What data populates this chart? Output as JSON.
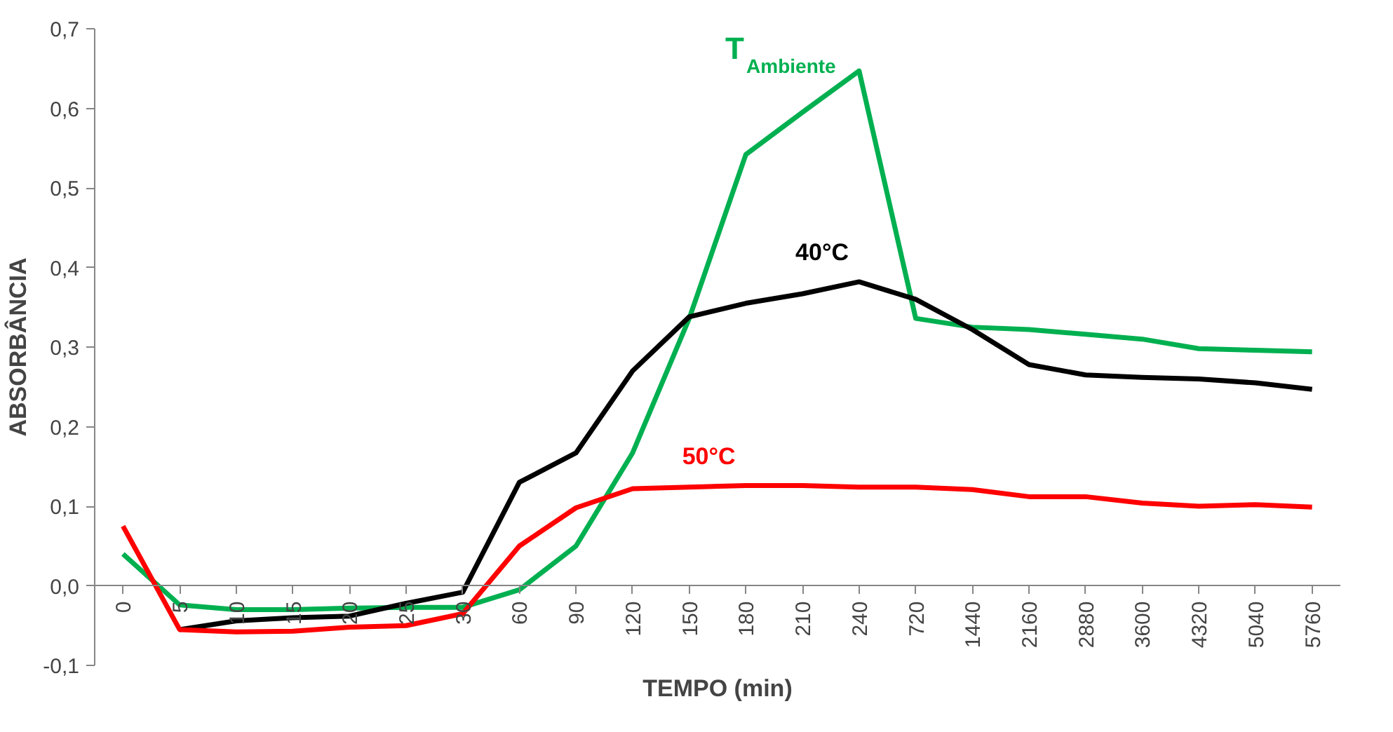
{
  "chart_data": {
    "type": "line",
    "xlabel": "TEMPO (min)",
    "ylabel": "ABSORBÂNCIA",
    "categories": [
      "0",
      "5",
      "10",
      "15",
      "20",
      "25",
      "30",
      "60",
      "90",
      "120",
      "150",
      "180",
      "210",
      "240",
      "720",
      "1440",
      "2160",
      "2880",
      "3600",
      "4320",
      "5040",
      "5760"
    ],
    "series": [
      {
        "name": "T$_{Ambiente}$",
        "color": "#00b050",
        "values": [
          0.04,
          -0.024,
          -0.03,
          -0.03,
          -0.028,
          -0.027,
          -0.027,
          -0.005,
          0.05,
          0.167,
          0.336,
          0.542,
          0.595,
          0.647,
          0.336,
          0.325,
          0.322,
          0.316,
          0.31,
          0.298,
          0.296,
          0.294
        ]
      },
      {
        "name": "40°C",
        "color": "#000000",
        "values": [
          null,
          -0.055,
          -0.044,
          -0.04,
          -0.038,
          -0.022,
          -0.008,
          0.13,
          0.167,
          0.27,
          0.338,
          0.355,
          0.367,
          0.382,
          0.36,
          0.322,
          0.278,
          0.265,
          0.262,
          0.26,
          0.255,
          0.247
        ]
      },
      {
        "name": "50°C",
        "color": "#ff0000",
        "values": [
          0.075,
          -0.055,
          -0.058,
          -0.057,
          -0.052,
          -0.05,
          -0.035,
          0.05,
          0.098,
          0.122,
          0.124,
          0.126,
          0.126,
          0.124,
          0.124,
          0.121,
          0.112,
          0.112,
          0.104,
          0.1,
          0.102,
          0.099
        ]
      }
    ],
    "ylim": [
      -0.1,
      0.7
    ],
    "yticks": [
      {
        "value": -0.1,
        "label": "-0,1"
      },
      {
        "value": 0,
        "label": "0,0"
      },
      {
        "value": 0.1,
        "label": "0,1"
      },
      {
        "value": 0.2,
        "label": "0,2"
      },
      {
        "value": 0.3,
        "label": "0,3"
      },
      {
        "value": 0.4,
        "label": "0,4"
      },
      {
        "value": 0.5,
        "label": "0,5"
      },
      {
        "value": 0.6,
        "label": "0,6"
      },
      {
        "value": 0.7,
        "label": "0,7"
      }
    ],
    "grid": false,
    "marker": "none",
    "line_style": "solid"
  }
}
